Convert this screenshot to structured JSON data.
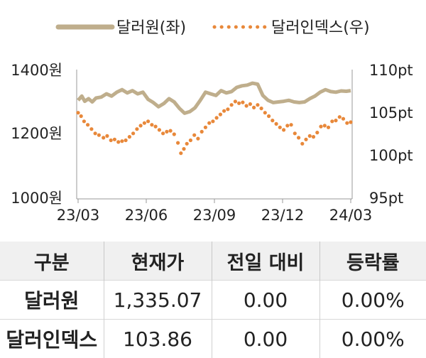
{
  "chart_data": {
    "type": "line",
    "legend": [
      "달러원(좌)",
      "달러인덱스(우)"
    ],
    "legend_placement": "top",
    "x_ticks": [
      "23/03",
      "23/06",
      "23/09",
      "23/12",
      "24/03"
    ],
    "y_left_ticks": [
      "1400원",
      "1200원",
      "1000원"
    ],
    "y_right_ticks": [
      "110pt",
      "105pt",
      "100pt",
      "95pt"
    ],
    "y_left_range": [
      1000,
      1400
    ],
    "y_right_range": [
      95,
      110
    ],
    "x_range": [
      "2023-03-01",
      "2024-03-01"
    ],
    "series": [
      {
        "name": "달러원(좌)",
        "axis": "left",
        "style": "solid",
        "color": "#bfae8c",
        "points": [
          [
            "2023-03-01",
            1305
          ],
          [
            "2023-03-06",
            1318
          ],
          [
            "2023-03-10",
            1302
          ],
          [
            "2023-03-15",
            1310
          ],
          [
            "2023-03-20",
            1300
          ],
          [
            "2023-03-25",
            1312
          ],
          [
            "2023-04-01",
            1315
          ],
          [
            "2023-04-08",
            1325
          ],
          [
            "2023-04-15",
            1318
          ],
          [
            "2023-04-22",
            1330
          ],
          [
            "2023-04-29",
            1338
          ],
          [
            "2023-05-06",
            1328
          ],
          [
            "2023-05-13",
            1335
          ],
          [
            "2023-05-20",
            1325
          ],
          [
            "2023-05-27",
            1330
          ],
          [
            "2023-06-03",
            1308
          ],
          [
            "2023-06-10",
            1298
          ],
          [
            "2023-06-17",
            1285
          ],
          [
            "2023-06-24",
            1295
          ],
          [
            "2023-07-01",
            1310
          ],
          [
            "2023-07-08",
            1300
          ],
          [
            "2023-07-15",
            1280
          ],
          [
            "2023-07-22",
            1265
          ],
          [
            "2023-07-29",
            1270
          ],
          [
            "2023-08-05",
            1282
          ],
          [
            "2023-08-12",
            1305
          ],
          [
            "2023-08-19",
            1330
          ],
          [
            "2023-08-26",
            1325
          ],
          [
            "2023-09-02",
            1320
          ],
          [
            "2023-09-09",
            1335
          ],
          [
            "2023-09-16",
            1328
          ],
          [
            "2023-09-23",
            1332
          ],
          [
            "2023-09-30",
            1345
          ],
          [
            "2023-10-07",
            1350
          ],
          [
            "2023-10-14",
            1352
          ],
          [
            "2023-10-21",
            1358
          ],
          [
            "2023-10-28",
            1355
          ],
          [
            "2023-11-04",
            1320
          ],
          [
            "2023-11-11",
            1305
          ],
          [
            "2023-11-18",
            1298
          ],
          [
            "2023-11-25",
            1300
          ],
          [
            "2023-12-02",
            1302
          ],
          [
            "2023-12-09",
            1305
          ],
          [
            "2023-12-16",
            1300
          ],
          [
            "2023-12-23",
            1298
          ],
          [
            "2023-12-30",
            1300
          ],
          [
            "2024-01-06",
            1310
          ],
          [
            "2024-01-13",
            1318
          ],
          [
            "2024-01-20",
            1330
          ],
          [
            "2024-01-27",
            1338
          ],
          [
            "2024-02-03",
            1332
          ],
          [
            "2024-02-10",
            1330
          ],
          [
            "2024-02-17",
            1334
          ],
          [
            "2024-02-24",
            1333
          ],
          [
            "2024-03-01",
            1335
          ]
        ]
      },
      {
        "name": "달러인덱스(우)",
        "axis": "right",
        "style": "dotted",
        "color": "#e8883a",
        "points": [
          [
            "2023-03-01",
            105.0
          ],
          [
            "2023-03-05",
            104.6
          ],
          [
            "2023-03-09",
            104.0
          ],
          [
            "2023-03-14",
            103.6
          ],
          [
            "2023-03-19",
            103.1
          ],
          [
            "2023-03-24",
            102.6
          ],
          [
            "2023-03-29",
            102.4
          ],
          [
            "2023-04-04",
            102.1
          ],
          [
            "2023-04-09",
            102.3
          ],
          [
            "2023-04-14",
            101.8
          ],
          [
            "2023-04-19",
            101.9
          ],
          [
            "2023-04-24",
            101.6
          ],
          [
            "2023-04-29",
            101.7
          ],
          [
            "2023-05-04",
            101.8
          ],
          [
            "2023-05-09",
            102.2
          ],
          [
            "2023-05-14",
            102.6
          ],
          [
            "2023-05-19",
            103.1
          ],
          [
            "2023-05-24",
            103.5
          ],
          [
            "2023-05-29",
            103.8
          ],
          [
            "2023-06-03",
            104.0
          ],
          [
            "2023-06-08",
            103.6
          ],
          [
            "2023-06-13",
            103.4
          ],
          [
            "2023-06-18",
            103.0
          ],
          [
            "2023-06-23",
            102.6
          ],
          [
            "2023-06-28",
            102.8
          ],
          [
            "2023-07-03",
            102.9
          ],
          [
            "2023-07-08",
            102.5
          ],
          [
            "2023-07-13",
            101.5
          ],
          [
            "2023-07-17",
            100.3
          ],
          [
            "2023-07-21",
            100.8
          ],
          [
            "2023-07-25",
            101.4
          ],
          [
            "2023-07-30",
            101.8
          ],
          [
            "2023-08-04",
            102.4
          ],
          [
            "2023-08-09",
            102.0
          ],
          [
            "2023-08-14",
            102.8
          ],
          [
            "2023-08-19",
            103.3
          ],
          [
            "2023-08-24",
            103.8
          ],
          [
            "2023-08-29",
            104.0
          ],
          [
            "2023-09-03",
            104.4
          ],
          [
            "2023-09-08",
            104.8
          ],
          [
            "2023-09-13",
            105.2
          ],
          [
            "2023-09-18",
            105.4
          ],
          [
            "2023-09-23",
            105.9
          ],
          [
            "2023-09-28",
            106.3
          ],
          [
            "2023-10-03",
            106.1
          ],
          [
            "2023-10-08",
            106.2
          ],
          [
            "2023-10-13",
            105.8
          ],
          [
            "2023-10-18",
            106.0
          ],
          [
            "2023-10-23",
            105.6
          ],
          [
            "2023-10-28",
            105.9
          ],
          [
            "2023-11-02",
            105.5
          ],
          [
            "2023-11-07",
            105.0
          ],
          [
            "2023-11-12",
            104.6
          ],
          [
            "2023-11-17",
            104.1
          ],
          [
            "2023-11-22",
            103.7
          ],
          [
            "2023-11-27",
            103.3
          ],
          [
            "2023-12-02",
            103.0
          ],
          [
            "2023-12-07",
            103.5
          ],
          [
            "2023-12-12",
            103.6
          ],
          [
            "2023-12-17",
            102.6
          ],
          [
            "2023-12-22",
            102.1
          ],
          [
            "2023-12-27",
            101.4
          ],
          [
            "2024-01-01",
            101.9
          ],
          [
            "2024-01-06",
            102.3
          ],
          [
            "2024-01-11",
            102.2
          ],
          [
            "2024-01-16",
            102.7
          ],
          [
            "2024-01-21",
            103.4
          ],
          [
            "2024-01-26",
            103.5
          ],
          [
            "2024-01-31",
            103.3
          ],
          [
            "2024-02-05",
            104.0
          ],
          [
            "2024-02-10",
            104.1
          ],
          [
            "2024-02-15",
            104.5
          ],
          [
            "2024-02-20",
            104.3
          ],
          [
            "2024-02-25",
            103.8
          ],
          [
            "2024-03-01",
            103.9
          ]
        ]
      }
    ]
  },
  "table": {
    "headers": [
      "구분",
      "현재가",
      "전일 대비",
      "등락률"
    ],
    "rows": [
      [
        "달러원",
        "1,335.07",
        "0.00",
        "0.00%"
      ],
      [
        "달러인덱스",
        "103.86",
        "0.00",
        "0.00%"
      ]
    ]
  }
}
